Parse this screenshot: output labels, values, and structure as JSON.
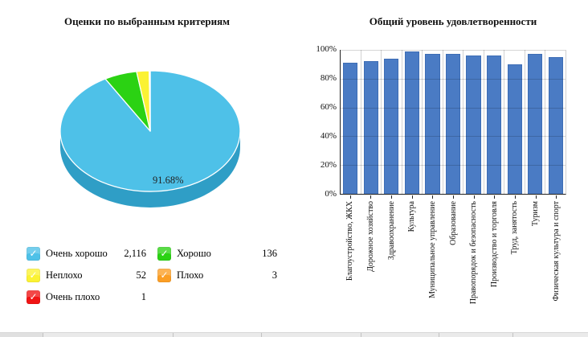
{
  "left": {
    "title": "Оценки по выбранным критериям",
    "pie_label": "91.68%",
    "legend": [
      {
        "label": "Очень хорошо",
        "value": "2,116",
        "color": "#4EC1E8"
      },
      {
        "label": "Хорошо",
        "value": "136",
        "color": "#2BD213"
      },
      {
        "label": "Неплохо",
        "value": "52",
        "color": "#FBF233"
      },
      {
        "label": "Плохо",
        "value": "3",
        "color": "#FB9E25"
      },
      {
        "label": "Очень плохо",
        "value": "1",
        "color": "#F01414"
      }
    ]
  },
  "right": {
    "title": "Общий уровень удовлетворенности",
    "ytick_labels": [
      "0%",
      "20%",
      "40%",
      "60%",
      "80%",
      "100%"
    ]
  },
  "chart_data": [
    {
      "type": "pie",
      "title": "Оценки по выбранным критериям",
      "labels": [
        "Очень хорошо",
        "Хорошо",
        "Неплохо",
        "Плохо",
        "Очень плохо"
      ],
      "values": [
        2116,
        136,
        52,
        3,
        1
      ],
      "colors": [
        "#4EC1E8",
        "#2BD213",
        "#FBF233",
        "#FB9E25",
        "#F01414"
      ],
      "style": "3d",
      "side_color": "#2F9EC6",
      "start_angle_deg": 0,
      "direction": "clockwise",
      "shown_label": "91.68%",
      "shown_label_slice": "Очень хорошо",
      "legend_position": "bottom"
    },
    {
      "type": "bar",
      "title": "Общий уровень удовлетворенности",
      "categories": [
        "Благоустройство, ЖКХ",
        "Дорожное хозяйство",
        "Здравоохранение",
        "Культура",
        "Муниципальное управление",
        "Образование",
        "Правопорядок и безопасность",
        "Производство и торговля",
        "Труд, занятость",
        "Туризм",
        "Физическая культура и спорт"
      ],
      "values": [
        91,
        92,
        94,
        99,
        97,
        97,
        96,
        96,
        90,
        97,
        95
      ],
      "xlabel": "",
      "ylabel": "",
      "ylim": [
        0,
        100
      ],
      "ytick_step": 20,
      "ytick_format": "percent",
      "grid": true,
      "bar_color": "#4A7BC4",
      "legend_position": "none"
    }
  ]
}
